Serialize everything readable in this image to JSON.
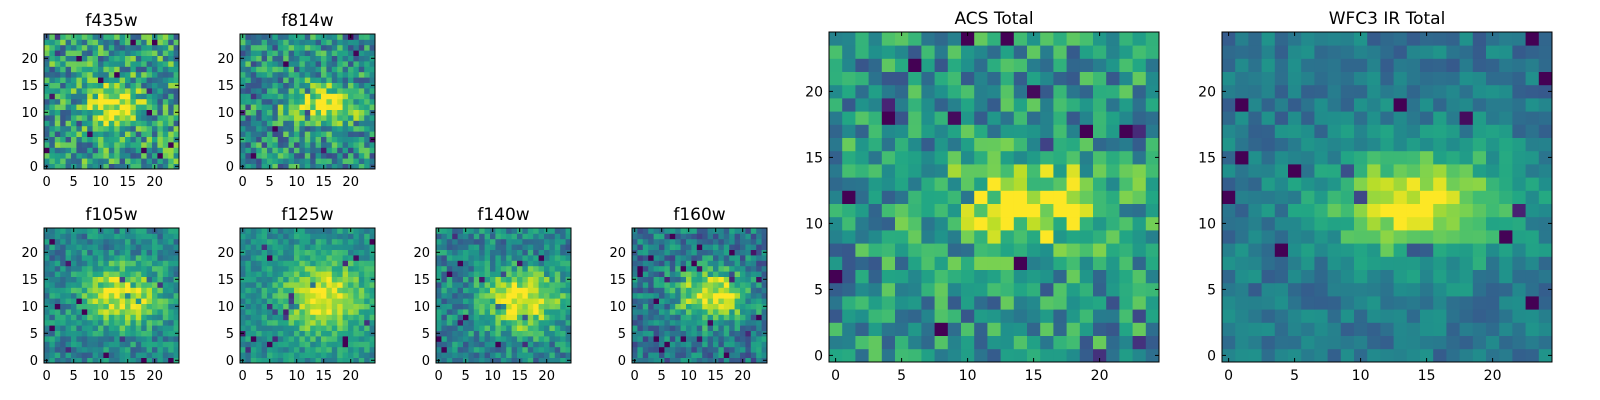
{
  "chart_data": [
    {
      "type": "heatmap",
      "title": "f435w",
      "xlabel": "",
      "ylabel": "",
      "grid_size": 25,
      "xlim": [
        0,
        24
      ],
      "ylim": [
        0,
        24
      ],
      "xticks": [
        "0",
        "5",
        "10",
        "15",
        "20"
      ],
      "yticks": [
        "0",
        "5",
        "10",
        "15",
        "20"
      ],
      "colormap": "viridis",
      "blob": {
        "x": 12.5,
        "y": 11.5,
        "sx": 3.5,
        "sy": 2.5,
        "noise": 0.3,
        "base": 0.55
      }
    },
    {
      "type": "heatmap",
      "title": "f814w",
      "xlabel": "",
      "ylabel": "",
      "grid_size": 25,
      "xlim": [
        0,
        24
      ],
      "ylim": [
        0,
        24
      ],
      "xticks": [
        "0",
        "5",
        "10",
        "15",
        "20"
      ],
      "yticks": [
        "0",
        "5",
        "10",
        "15",
        "20"
      ],
      "colormap": "viridis",
      "blob": {
        "x": 15,
        "y": 11.5,
        "sx": 4.5,
        "sy": 2.5,
        "noise": 0.28,
        "base": 0.5
      }
    },
    {
      "type": "heatmap",
      "title": "f105w",
      "xlabel": "",
      "ylabel": "",
      "grid_size": 25,
      "xlim": [
        0,
        24
      ],
      "ylim": [
        0,
        24
      ],
      "xticks": [
        "0",
        "5",
        "10",
        "15",
        "20"
      ],
      "yticks": [
        "0",
        "5",
        "10",
        "15",
        "20"
      ],
      "colormap": "viridis",
      "blob": {
        "x": 14,
        "y": 12,
        "sx": 5,
        "sy": 4,
        "noise": 0.18,
        "base": 0.45
      }
    },
    {
      "type": "heatmap",
      "title": "f125w",
      "xlabel": "",
      "ylabel": "",
      "grid_size": 25,
      "xlim": [
        0,
        24
      ],
      "ylim": [
        0,
        24
      ],
      "xticks": [
        "0",
        "5",
        "10",
        "15",
        "20"
      ],
      "yticks": [
        "0",
        "5",
        "10",
        "15",
        "20"
      ],
      "colormap": "viridis",
      "blob": {
        "x": 15,
        "y": 11.5,
        "sx": 5.5,
        "sy": 4.5,
        "noise": 0.15,
        "base": 0.5
      }
    },
    {
      "type": "heatmap",
      "title": "f140w",
      "xlabel": "",
      "ylabel": "",
      "grid_size": 25,
      "xlim": [
        0,
        24
      ],
      "ylim": [
        0,
        24
      ],
      "xticks": [
        "0",
        "5",
        "10",
        "15",
        "20"
      ],
      "yticks": [
        "0",
        "5",
        "10",
        "15",
        "20"
      ],
      "colormap": "viridis",
      "blob": {
        "x": 15.5,
        "y": 11,
        "sx": 5,
        "sy": 4,
        "noise": 0.2,
        "base": 0.45
      }
    },
    {
      "type": "heatmap",
      "title": "f160w",
      "xlabel": "",
      "ylabel": "",
      "grid_size": 25,
      "xlim": [
        0,
        24
      ],
      "ylim": [
        0,
        24
      ],
      "xticks": [
        "0",
        "5",
        "10",
        "15",
        "20"
      ],
      "yticks": [
        "0",
        "5",
        "10",
        "15",
        "20"
      ],
      "colormap": "viridis",
      "blob": {
        "x": 14.5,
        "y": 12,
        "sx": 4.5,
        "sy": 3.5,
        "noise": 0.22,
        "base": 0.4
      }
    },
    {
      "type": "heatmap",
      "title": "ACS Total",
      "xlabel": "",
      "ylabel": "",
      "grid_size": 25,
      "xlim": [
        0,
        24
      ],
      "ylim": [
        0,
        24
      ],
      "xticks": [
        "0",
        "5",
        "10",
        "15",
        "20"
      ],
      "yticks": [
        "0",
        "5",
        "10",
        "15",
        "20"
      ],
      "colormap": "viridis",
      "blob": {
        "x": 14.5,
        "y": 11.5,
        "sx": 4.5,
        "sy": 2.2,
        "noise": 0.25,
        "base": 0.52
      }
    },
    {
      "type": "heatmap",
      "title": "WFC3 IR Total",
      "xlabel": "",
      "ylabel": "",
      "grid_size": 25,
      "xlim": [
        0,
        24
      ],
      "ylim": [
        0,
        24
      ],
      "xticks": [
        "0",
        "5",
        "10",
        "15",
        "20"
      ],
      "yticks": [
        "0",
        "5",
        "10",
        "15",
        "20"
      ],
      "colormap": "viridis",
      "blob": {
        "x": 14.5,
        "y": 11.5,
        "sx": 5,
        "sy": 3,
        "noise": 0.12,
        "base": 0.4
      }
    }
  ]
}
